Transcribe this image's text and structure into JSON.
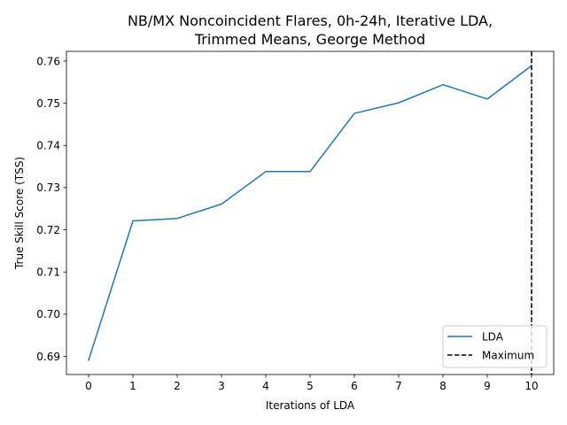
{
  "chart_data": {
    "type": "line",
    "title_lines": [
      "NB/MX Noncoincident Flares, 0h-24h, Iterative LDA,",
      "Trimmed Means, George Method"
    ],
    "xlabel": "Iterations of LDA",
    "ylabel": "True Skill Score (TSS)",
    "x": [
      0,
      1,
      2,
      3,
      4,
      5,
      6,
      7,
      8,
      9,
      10
    ],
    "xlim": [
      -0.5,
      10.5
    ],
    "ylim": [
      0.6857,
      0.7623
    ],
    "xticks": [
      0,
      1,
      2,
      3,
      4,
      5,
      6,
      7,
      8,
      9,
      10
    ],
    "xtick_labels": [
      "0",
      "1",
      "2",
      "3",
      "4",
      "5",
      "6",
      "7",
      "8",
      "9",
      "10"
    ],
    "yticks": [
      0.69,
      0.7,
      0.71,
      0.72,
      0.73,
      0.74,
      0.75,
      0.76
    ],
    "ytick_labels": [
      "0.69",
      "0.70",
      "0.71",
      "0.72",
      "0.73",
      "0.74",
      "0.75",
      "0.76"
    ],
    "series": [
      {
        "name": "LDA",
        "color": "#1f77b4",
        "values": [
          0.6891,
          0.7221,
          0.7227,
          0.7261,
          0.7338,
          0.7338,
          0.7476,
          0.7501,
          0.7544,
          0.751,
          0.7589
        ]
      }
    ],
    "vline": {
      "name": "Maximum",
      "x": 10,
      "color": "#000000",
      "style": "dashed"
    },
    "legend": {
      "position": "lower-right",
      "entries": [
        "LDA",
        "Maximum"
      ]
    },
    "grid": false
  }
}
